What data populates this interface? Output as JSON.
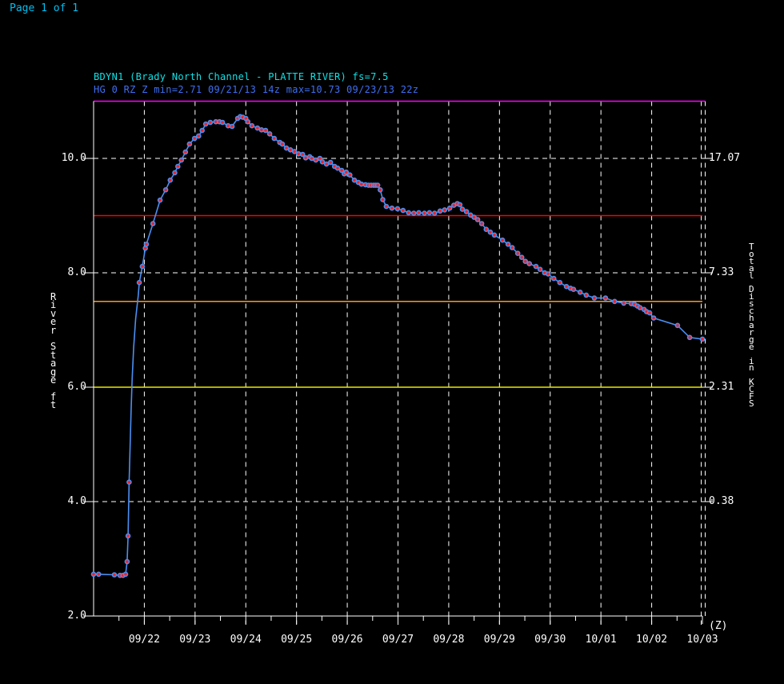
{
  "page": {
    "indicator": "Page 1 of 1"
  },
  "header": {
    "title": "BDYN1 (Brady North Channel - PLATTE RIVER) fs=7.5",
    "subtitle": "HG 0 RZ Z min=2.71 09/21/13 14z max=10.73 09/23/13 22z"
  },
  "colors": {
    "background": "#000000",
    "grid": "#ffffff",
    "page_text": "#00bfef",
    "title_cyan": "#0fe2e6",
    "subtitle_blue": "#3e6ff0",
    "trace_blue": "#4b8ff2",
    "marker_red": "#ff2020",
    "ref_magenta": "#ff00ff",
    "ref_red": "#ff0000",
    "ref_orange": "#ff9822",
    "ref_yellow": "#e8e800"
  },
  "chart_data": {
    "type": "line",
    "station": "BDYN1 (Brady North Channel - PLATTE RIVER)",
    "flood_stage": 7.5,
    "min_annotation": "min=2.71 09/21/13 14z",
    "max_annotation": "max=10.73 09/23/13 22z",
    "y_left": {
      "label": "River Stage ft",
      "ticks": [
        10.0,
        8.0,
        6.0,
        4.0,
        2.0
      ],
      "tick_labels": [
        "10.0",
        "8.0",
        "6.0",
        "4.0",
        "2.0"
      ],
      "range": [
        2.0,
        11.0
      ],
      "dashed_gridline_stages": [
        10.0,
        8.0,
        4.0
      ]
    },
    "y_right": {
      "label": "Total Discharge in KCFS",
      "tick_labels": [
        "17.07",
        "7.33",
        "2.31",
        "0.38"
      ],
      "tick_stages": [
        10.0,
        8.0,
        6.0,
        4.0
      ]
    },
    "x": {
      "unit_label": "(Z)",
      "tick_labels": [
        "09/22",
        "09/23",
        "09/24",
        "09/25",
        "09/26",
        "09/27",
        "09/28",
        "09/29",
        "09/30",
        "10/01",
        "10/02",
        "10/03"
      ],
      "tick_positions_days": [
        1,
        2,
        3,
        4,
        5,
        6,
        7,
        8,
        9,
        10,
        11,
        12
      ],
      "range_days": [
        0,
        12
      ],
      "minor_tick_step_days": 0.5
    },
    "ref_lines": [
      {
        "stage": 11.0,
        "color": "#ff00ff",
        "name": "axis-top-magenta"
      },
      {
        "stage": 9.0,
        "color": "#ff0000",
        "name": "red-reference"
      },
      {
        "stage": 7.5,
        "color": "#ff9822",
        "name": "flood-stage-7.5"
      },
      {
        "stage": 6.0,
        "color": "#e8e800",
        "name": "yellow-reference"
      }
    ],
    "series": [
      {
        "name": "observed river stage",
        "line_color": "#4b8ff2",
        "marker_color": "#ff2020",
        "marker_hidden_t_range": [
          0.715,
          0.885
        ],
        "points": [
          [
            0.0,
            2.73
          ],
          [
            0.1,
            2.73
          ],
          [
            0.41,
            2.72
          ],
          [
            0.52,
            2.71
          ],
          [
            0.58,
            2.71
          ],
          [
            0.63,
            2.73
          ],
          [
            0.66,
            2.95
          ],
          [
            0.68,
            3.4
          ],
          [
            0.7,
            4.34
          ],
          [
            0.72,
            5.0
          ],
          [
            0.74,
            5.6
          ],
          [
            0.76,
            6.15
          ],
          [
            0.79,
            6.7
          ],
          [
            0.83,
            7.2
          ],
          [
            0.88,
            7.6
          ],
          [
            0.9,
            7.83
          ],
          [
            0.96,
            8.11
          ],
          [
            1.02,
            8.43
          ],
          [
            1.04,
            8.5
          ],
          [
            1.17,
            8.86
          ],
          [
            1.31,
            9.27
          ],
          [
            1.42,
            9.45
          ],
          [
            1.51,
            9.62
          ],
          [
            1.6,
            9.75
          ],
          [
            1.66,
            9.86
          ],
          [
            1.73,
            9.97
          ],
          [
            1.81,
            10.11
          ],
          [
            1.89,
            10.25
          ],
          [
            1.99,
            10.35
          ],
          [
            2.07,
            10.39
          ],
          [
            2.14,
            10.49
          ],
          [
            2.21,
            10.6
          ],
          [
            2.3,
            10.63
          ],
          [
            2.41,
            10.64
          ],
          [
            2.48,
            10.64
          ],
          [
            2.54,
            10.63
          ],
          [
            2.65,
            10.57
          ],
          [
            2.73,
            10.56
          ],
          [
            2.84,
            10.7
          ],
          [
            2.89,
            10.73
          ],
          [
            2.94,
            10.72
          ],
          [
            3.0,
            10.7
          ],
          [
            3.04,
            10.64
          ],
          [
            3.12,
            10.57
          ],
          [
            3.23,
            10.53
          ],
          [
            3.31,
            10.5
          ],
          [
            3.39,
            10.49
          ],
          [
            3.47,
            10.43
          ],
          [
            3.56,
            10.35
          ],
          [
            3.67,
            10.28
          ],
          [
            3.72,
            10.25
          ],
          [
            3.8,
            10.18
          ],
          [
            3.88,
            10.15
          ],
          [
            3.96,
            10.12
          ],
          [
            4.04,
            10.08
          ],
          [
            4.12,
            10.07
          ],
          [
            4.18,
            10.01
          ],
          [
            4.26,
            10.03
          ],
          [
            4.3,
            10.0
          ],
          [
            4.38,
            9.97
          ],
          [
            4.46,
            10.0
          ],
          [
            4.51,
            9.94
          ],
          [
            4.59,
            9.9
          ],
          [
            4.67,
            9.93
          ],
          [
            4.75,
            9.86
          ],
          [
            4.81,
            9.83
          ],
          [
            4.89,
            9.79
          ],
          [
            4.94,
            9.73
          ],
          [
            4.98,
            9.76
          ],
          [
            5.05,
            9.71
          ],
          [
            5.14,
            9.62
          ],
          [
            5.22,
            9.58
          ],
          [
            5.28,
            9.55
          ],
          [
            5.36,
            9.54
          ],
          [
            5.42,
            9.53
          ],
          [
            5.47,
            9.53
          ],
          [
            5.52,
            9.53
          ],
          [
            5.56,
            9.53
          ],
          [
            5.6,
            9.53
          ],
          [
            5.65,
            9.45
          ],
          [
            5.7,
            9.28
          ],
          [
            5.77,
            9.16
          ],
          [
            5.88,
            9.13
          ],
          [
            5.99,
            9.12
          ],
          [
            6.1,
            9.09
          ],
          [
            6.21,
            9.05
          ],
          [
            6.31,
            9.04
          ],
          [
            6.41,
            9.05
          ],
          [
            6.52,
            9.04
          ],
          [
            6.62,
            9.05
          ],
          [
            6.72,
            9.04
          ],
          [
            6.83,
            9.08
          ],
          [
            6.92,
            9.1
          ],
          [
            7.02,
            9.13
          ],
          [
            7.1,
            9.18
          ],
          [
            7.17,
            9.21
          ],
          [
            7.22,
            9.19
          ],
          [
            7.27,
            9.11
          ],
          [
            7.35,
            9.07
          ],
          [
            7.43,
            9.01
          ],
          [
            7.5,
            8.97
          ],
          [
            7.57,
            8.93
          ],
          [
            7.65,
            8.86
          ],
          [
            7.74,
            8.76
          ],
          [
            7.82,
            8.71
          ],
          [
            7.9,
            8.66
          ],
          [
            8.06,
            8.57
          ],
          [
            8.17,
            8.5
          ],
          [
            8.25,
            8.44
          ],
          [
            8.36,
            8.34
          ],
          [
            8.44,
            8.27
          ],
          [
            8.51,
            8.2
          ],
          [
            8.59,
            8.16
          ],
          [
            8.72,
            8.11
          ],
          [
            8.8,
            8.06
          ],
          [
            8.89,
            8.0
          ],
          [
            8.96,
            7.98
          ],
          [
            9.07,
            7.9
          ],
          [
            9.19,
            7.83
          ],
          [
            9.32,
            7.76
          ],
          [
            9.4,
            7.73
          ],
          [
            9.46,
            7.71
          ],
          [
            9.59,
            7.66
          ],
          [
            9.71,
            7.61
          ],
          [
            9.87,
            7.56
          ],
          [
            10.09,
            7.56
          ],
          [
            10.27,
            7.5
          ],
          [
            10.45,
            7.47
          ],
          [
            10.6,
            7.46
          ],
          [
            10.66,
            7.45
          ],
          [
            10.72,
            7.42
          ],
          [
            10.77,
            7.39
          ],
          [
            10.85,
            7.36
          ],
          [
            10.9,
            7.32
          ],
          [
            10.96,
            7.3
          ],
          [
            11.04,
            7.21
          ],
          [
            11.51,
            7.08
          ],
          [
            11.75,
            6.87
          ],
          [
            12.0,
            6.84
          ]
        ]
      }
    ]
  }
}
